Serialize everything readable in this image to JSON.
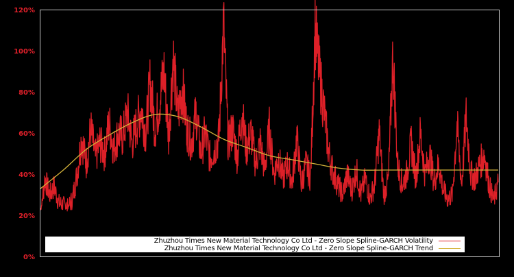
{
  "chart_data": {
    "type": "line",
    "title": "",
    "xlabel": "",
    "ylabel": "",
    "ylim": [
      0,
      120
    ],
    "yticks": [
      "0%",
      "20%",
      "40%",
      "60%",
      "80%",
      "100%",
      "120%"
    ],
    "ytick_values": [
      0,
      20,
      40,
      60,
      80,
      100,
      120
    ],
    "grid": false,
    "legend_position": "bottom-inside",
    "colors": {
      "background": "#000000",
      "axis": "#c8c8c8",
      "tick_label": "#e0202a",
      "volatility": "#dd2028",
      "trend": "#d4b33a",
      "legend_bg": "#ffffff"
    },
    "series": [
      {
        "name": "Zhuzhou Times New Material Technology Co Ltd - Zero Slope Spline-GARCH Volatility",
        "color": "#dd2028",
        "x": [
          0,
          1,
          2,
          3,
          4,
          5,
          6,
          7,
          8,
          9,
          10,
          11,
          12,
          13,
          14,
          15,
          16,
          17,
          18,
          19,
          20,
          21,
          22,
          23,
          24,
          25,
          26,
          27,
          28,
          29,
          30,
          31,
          32,
          33,
          34,
          35,
          36,
          37,
          38,
          39,
          40,
          41,
          42,
          43,
          44,
          45,
          46,
          47,
          48,
          49,
          50,
          51,
          52,
          53,
          54,
          55,
          56,
          57,
          58,
          59,
          60,
          61,
          62,
          63,
          64,
          65,
          66,
          67,
          68,
          69,
          70,
          71,
          72,
          73,
          74,
          75,
          76,
          77,
          78,
          79,
          80,
          81,
          82,
          83,
          84,
          85,
          86,
          87,
          88,
          89,
          90,
          91,
          92,
          93,
          94,
          95,
          96,
          97,
          98,
          99,
          100
        ],
        "values": [
          21,
          38,
          30,
          34,
          26,
          25,
          24,
          28,
          40,
          58,
          45,
          62,
          48,
          55,
          50,
          65,
          52,
          60,
          58,
          70,
          55,
          64,
          72,
          60,
          85,
          62,
          75,
          90,
          58,
          97,
          68,
          82,
          62,
          55,
          70,
          50,
          60,
          48,
          52,
          58,
          113,
          55,
          62,
          48,
          70,
          52,
          60,
          45,
          55,
          42,
          62,
          40,
          48,
          38,
          45,
          36,
          58,
          35,
          45,
          38,
          110,
          88,
          70,
          50,
          40,
          35,
          30,
          40,
          32,
          42,
          30,
          38,
          28,
          35,
          60,
          30,
          37,
          98,
          45,
          35,
          40,
          55,
          38,
          60,
          40,
          50,
          36,
          45,
          32,
          28,
          30,
          64,
          35,
          68,
          40,
          38,
          45,
          50,
          35,
          27,
          36
        ]
      },
      {
        "name": "Zhuzhou Times New Material Technology Co Ltd - Zero Slope Spline-GARCH Trend",
        "color": "#d4b33a",
        "x": [
          0,
          5,
          10,
          15,
          20,
          25,
          30,
          35,
          40,
          45,
          50,
          55,
          60,
          65,
          70,
          75,
          80,
          85,
          90,
          95,
          100
        ],
        "values": [
          33,
          42,
          52,
          59,
          65,
          69,
          68,
          63,
          57,
          53,
          49,
          47,
          45,
          43,
          42,
          42,
          42,
          42,
          42,
          42,
          42
        ]
      }
    ]
  },
  "legend": {
    "items": [
      {
        "label": "Zhuzhou Times New Material Technology Co Ltd - Zero Slope Spline-GARCH Volatility",
        "color": "#dd2028"
      },
      {
        "label": "Zhuzhou Times New Material Technology Co Ltd - Zero Slope Spline-GARCH Trend",
        "color": "#d4b33a"
      }
    ]
  }
}
